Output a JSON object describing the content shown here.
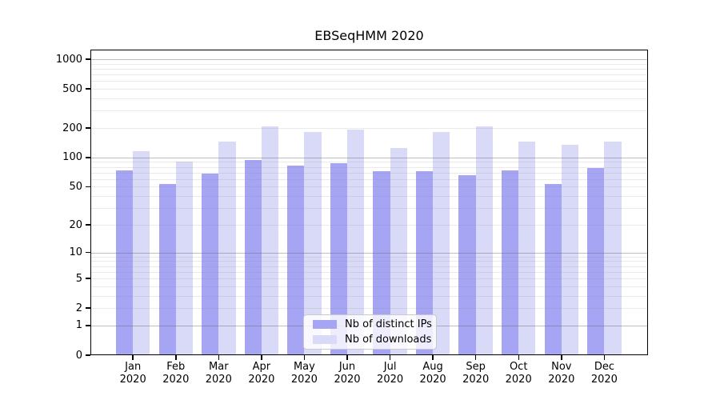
{
  "chart_data": {
    "type": "bar",
    "title": "EBSeqHMM 2020",
    "months": [
      "Jan",
      "Feb",
      "Mar",
      "Apr",
      "May",
      "Jun",
      "Jul",
      "Aug",
      "Sep",
      "Oct",
      "Nov",
      "Dec"
    ],
    "year_label": "2020",
    "series": [
      {
        "name": "Nb of distinct IPs",
        "color": "#a5a5f4",
        "values": [
          74,
          53,
          69,
          95,
          82,
          88,
          73,
          73,
          66,
          74,
          53,
          78
        ]
      },
      {
        "name": "Nb of downloads",
        "color": "#d9d9f8",
        "values": [
          116,
          91,
          146,
          207,
          181,
          193,
          126,
          181,
          207,
          146,
          135,
          146
        ]
      }
    ],
    "xlabel": "",
    "ylabel": "",
    "yscale": "log1p",
    "ylim": [
      0,
      1252
    ],
    "yticks": [
      1000,
      500,
      200,
      100,
      50,
      20,
      10,
      5,
      2,
      1,
      0
    ],
    "grid": {
      "major": [
        1,
        10,
        100,
        1000
      ],
      "minor": [
        2,
        3,
        4,
        5,
        6,
        7,
        8,
        9,
        20,
        30,
        40,
        50,
        60,
        70,
        80,
        90,
        200,
        300,
        400,
        500,
        600,
        700,
        800,
        900
      ]
    },
    "legend_position": "bottom-center",
    "background": "#ffffff"
  }
}
